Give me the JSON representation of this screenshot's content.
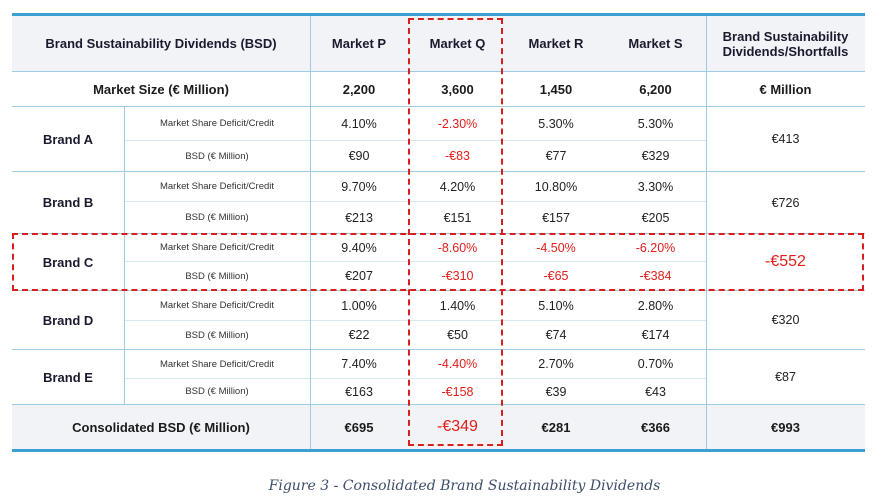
{
  "header": {
    "title": "Brand Sustainability Dividends (BSD)",
    "markets": [
      "Market P",
      "Market Q",
      "Market R",
      "Market S"
    ],
    "last_col": "Brand Sustainability Dividends/Shortfalls"
  },
  "market_size": {
    "label": "Market Size (€ Million)",
    "values": [
      "2,200",
      "3,600",
      "1,450",
      "6,200"
    ],
    "unit": "€ Million"
  },
  "row_labels": {
    "share": "Market Share Deficit/Credit",
    "bsd": "BSD (€ Million)"
  },
  "brands": [
    {
      "name": "Brand A",
      "share": [
        "4.10%",
        "-2.30%",
        "5.30%",
        "5.30%"
      ],
      "bsd": [
        "€90",
        "-€83",
        "€77",
        "€329"
      ],
      "total": "€413"
    },
    {
      "name": "Brand B",
      "share": [
        "9.70%",
        "4.20%",
        "10.80%",
        "3.30%"
      ],
      "bsd": [
        "€213",
        "€151",
        "€157",
        "€205"
      ],
      "total": "€726"
    },
    {
      "name": "Brand C",
      "share": [
        "9.40%",
        "-8.60%",
        "-4.50%",
        "-6.20%"
      ],
      "bsd": [
        "€207",
        "-€310",
        "-€65",
        "-€384"
      ],
      "total": "-€552"
    },
    {
      "name": "Brand D",
      "share": [
        "1.00%",
        "1.40%",
        "5.10%",
        "2.80%"
      ],
      "bsd": [
        "€22",
        "€50",
        "€74",
        "€174"
      ],
      "total": "€320"
    },
    {
      "name": "Brand E",
      "share": [
        "7.40%",
        "-4.40%",
        "2.70%",
        "0.70%"
      ],
      "bsd": [
        "€163",
        "-€158",
        "€39",
        "€43"
      ],
      "total": "€87"
    }
  ],
  "consolidated": {
    "label": "Consolidated BSD (€ Million)",
    "values": [
      "€695",
      "-€349",
      "€281",
      "€366"
    ],
    "total": "€993"
  },
  "caption": "Figure 3 - Consolidated Brand Sustainability Dividends",
  "colors": {
    "accent_line": "#3aa0d3",
    "negative": "#e0201b",
    "highlight_dash": "#d62020",
    "header_bg": "#f1f3f6"
  }
}
